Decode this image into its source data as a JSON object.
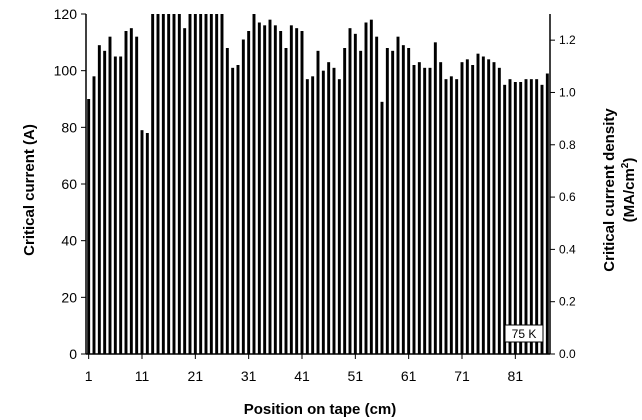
{
  "chart_data": {
    "type": "bar",
    "xlabel": "Position on tape  (cm)",
    "ylabel": "Critical current  (A)",
    "ylabel_right_line1": "Critical current density",
    "ylabel_right_line2": "(MA/cm",
    "ylabel_right_sup": "2",
    "ylabel_right_close": ")",
    "annotation": "75 K",
    "xlim": [
      0.5,
      87.5
    ],
    "ylim": [
      0,
      120
    ],
    "y2lim": [
      0.0,
      1.3
    ],
    "x_ticks": [
      1,
      11,
      21,
      31,
      41,
      51,
      61,
      71,
      81
    ],
    "y_ticks": [
      0,
      20,
      40,
      60,
      80,
      100,
      120
    ],
    "y2_ticks": [
      "0.0",
      "0.2",
      "0.4",
      "0.6",
      "0.8",
      "1.0",
      "1.2"
    ],
    "y2_tick_values": [
      0.0,
      0.2,
      0.4,
      0.6,
      0.8,
      1.0,
      1.2
    ],
    "bar_color": "#000000",
    "x": [
      1,
      2,
      3,
      4,
      5,
      6,
      7,
      8,
      9,
      10,
      11,
      12,
      13,
      14,
      15,
      16,
      17,
      18,
      19,
      20,
      21,
      22,
      23,
      24,
      25,
      26,
      27,
      28,
      29,
      30,
      31,
      32,
      33,
      34,
      35,
      36,
      37,
      38,
      39,
      40,
      41,
      42,
      43,
      44,
      45,
      46,
      47,
      48,
      49,
      50,
      51,
      52,
      53,
      54,
      55,
      56,
      57,
      58,
      59,
      60,
      61,
      62,
      63,
      64,
      65,
      66,
      67,
      68,
      69,
      70,
      71,
      72,
      73,
      74,
      75,
      76,
      77,
      78,
      79,
      80,
      81,
      82,
      83,
      84,
      85,
      86,
      87
    ],
    "values": [
      90,
      98,
      109,
      107,
      112,
      105,
      105,
      114,
      115,
      112,
      79,
      78,
      120,
      120,
      120,
      120,
      120,
      120,
      115,
      120,
      120,
      120,
      120,
      120,
      120,
      120,
      108,
      101,
      102,
      111,
      114,
      120,
      117,
      116,
      118,
      116,
      114,
      108,
      116,
      115,
      114,
      97,
      98,
      107,
      100,
      103,
      101,
      97,
      108,
      115,
      113,
      107,
      117,
      118,
      112,
      89,
      108,
      107,
      112,
      109,
      108,
      102,
      103,
      101,
      101,
      110,
      103,
      97,
      98,
      97,
      103,
      104,
      102,
      106,
      105,
      104,
      103,
      101,
      95,
      97,
      96,
      96,
      97,
      97,
      97,
      95,
      99
    ]
  }
}
